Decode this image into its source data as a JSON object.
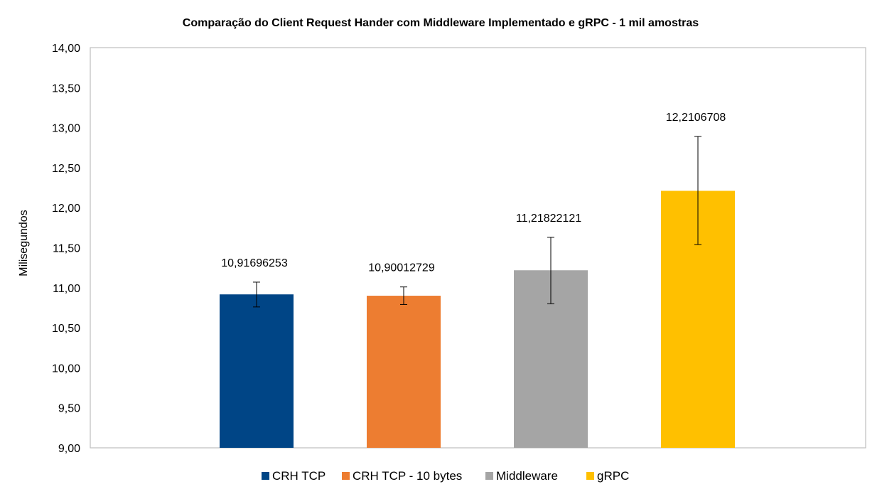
{
  "chart_data": {
    "type": "bar",
    "title": "Comparação  do Client Request Hander com Middleware Implementado e  gRPC  - 1 mil amostras",
    "xlabel": "",
    "ylabel": "Milisegundos",
    "ylim": [
      9,
      14
    ],
    "ytick_step": 0.5,
    "yticks": [
      "9,00",
      "9,50",
      "10,00",
      "10,50",
      "11,00",
      "11,50",
      "12,00",
      "12,50",
      "13,00",
      "13,50",
      "14,00"
    ],
    "grid": false,
    "legend_position": "bottom",
    "series": [
      {
        "name": "CRH TCP",
        "value": 10.91696253,
        "label": "10,91696253",
        "error_low": 10.76,
        "error_high": 11.07,
        "color": "#004586"
      },
      {
        "name": "CRH TCP - 10 bytes",
        "value": 10.90012729,
        "label": "10,90012729",
        "error_low": 10.79,
        "error_high": 11.01,
        "color": "#ed7d31"
      },
      {
        "name": "Middleware",
        "value": 11.21822121,
        "label": "11,21822121",
        "error_low": 10.8,
        "error_high": 11.63,
        "color": "#a5a5a5"
      },
      {
        "name": "gRPC",
        "value": 12.2106708,
        "label": "12,2106708",
        "error_low": 11.54,
        "error_high": 12.89,
        "color": "#ffc000"
      }
    ]
  }
}
